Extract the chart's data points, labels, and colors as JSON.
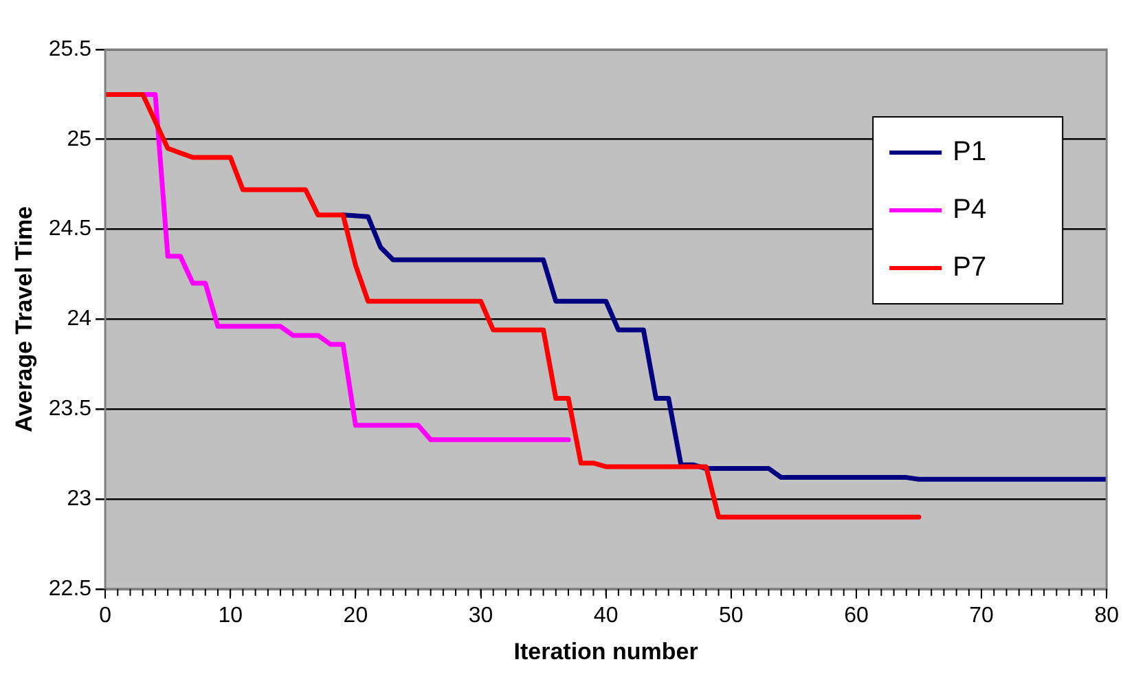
{
  "chart_data": {
    "type": "line",
    "xlabel": "Iteration number",
    "ylabel": "Average Travel Time",
    "xlim": [
      0,
      80
    ],
    "xticks": [
      0,
      10,
      20,
      30,
      40,
      50,
      60,
      70,
      80
    ],
    "ylim": [
      22.5,
      25.5
    ],
    "yticks": [
      22.5,
      23,
      23.5,
      24,
      24.5,
      25,
      25.5
    ],
    "grid": "y",
    "legend": "top right",
    "marker": "none",
    "line_style": "solid",
    "series": [
      {
        "name": "P1",
        "color": "#000080",
        "x": [
          19,
          21,
          22,
          23,
          35,
          36,
          40,
          41,
          43,
          44,
          45,
          46,
          47,
          48,
          53,
          54,
          64,
          65,
          80
        ],
        "values": [
          24.58,
          24.57,
          24.4,
          24.33,
          24.33,
          24.1,
          24.1,
          23.94,
          23.94,
          23.56,
          23.56,
          23.19,
          23.19,
          23.17,
          23.17,
          23.12,
          23.12,
          23.11,
          23.11
        ]
      },
      {
        "name": "P4",
        "color": "#ff00ff",
        "x": [
          3,
          4,
          5,
          6,
          7,
          8,
          9,
          14,
          15,
          17,
          18,
          19,
          20,
          25,
          26,
          37
        ],
        "values": [
          25.25,
          25.25,
          24.35,
          24.35,
          24.2,
          24.2,
          23.96,
          23.96,
          23.91,
          23.91,
          23.86,
          23.86,
          23.41,
          23.41,
          23.33,
          23.33
        ]
      },
      {
        "name": "P7",
        "color": "#ff0000",
        "x": [
          0,
          3,
          4,
          5,
          7,
          10,
          11,
          16,
          17,
          19,
          20,
          21,
          30,
          31,
          35,
          36,
          37,
          38,
          39,
          40,
          48,
          49,
          65
        ],
        "values": [
          25.25,
          25.25,
          25.1,
          24.95,
          24.9,
          24.9,
          24.72,
          24.72,
          24.58,
          24.58,
          24.3,
          24.1,
          24.1,
          23.94,
          23.94,
          23.56,
          23.56,
          23.2,
          23.2,
          23.18,
          23.18,
          22.9,
          22.9
        ]
      }
    ]
  }
}
